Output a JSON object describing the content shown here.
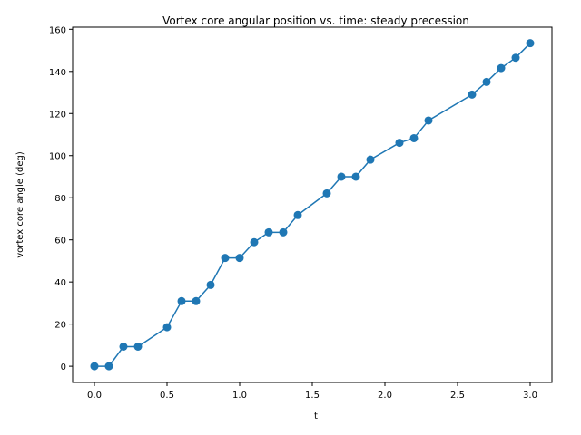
{
  "chart_data": {
    "type": "line",
    "title": "Vortex core angular position vs. time: steady precession",
    "xlabel": "t",
    "ylabel": "vortex core angle (deg)",
    "xlim": [
      -0.15,
      3.15
    ],
    "ylim": [
      -7.7,
      161.0
    ],
    "xticks": [
      0.0,
      0.5,
      1.0,
      1.5,
      2.0,
      2.5,
      3.0
    ],
    "xtick_labels": [
      "0.0",
      "0.5",
      "1.0",
      "1.5",
      "2.0",
      "2.5",
      "3.0"
    ],
    "yticks": [
      0,
      20,
      40,
      60,
      80,
      100,
      120,
      140,
      160
    ],
    "ytick_labels": [
      "0",
      "20",
      "40",
      "60",
      "80",
      "100",
      "120",
      "140",
      "160"
    ],
    "grid": false,
    "legend": "none",
    "series": [
      {
        "color": "#1f77b4",
        "marker": "circle",
        "x": [
          0.0,
          0.1,
          0.2,
          0.3,
          0.5,
          0.6,
          0.7,
          0.8,
          0.9,
          1.0,
          1.1,
          1.2,
          1.3,
          1.4,
          1.6,
          1.7,
          1.8,
          1.9,
          2.1,
          2.2,
          2.3,
          2.6,
          2.7,
          2.8,
          2.9,
          3.0
        ],
        "y": [
          0.0,
          0.0,
          9.3,
          9.3,
          18.5,
          30.9,
          30.9,
          38.6,
          51.4,
          51.4,
          58.9,
          63.6,
          63.6,
          71.8,
          82.1,
          90.0,
          90.0,
          98.1,
          106.1,
          108.3,
          116.7,
          129.0,
          135.0,
          141.6,
          146.5,
          153.4
        ]
      }
    ]
  }
}
